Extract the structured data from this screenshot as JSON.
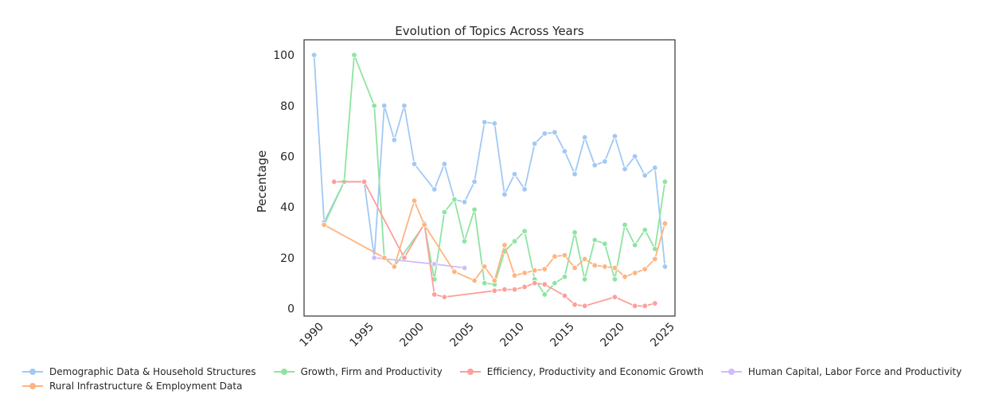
{
  "chart_data": {
    "type": "line",
    "title": "Evolution of Topics Across Years",
    "xlabel": "",
    "ylabel": "Pecentage",
    "xlim": [
      1988,
      2025
    ],
    "ylim": [
      -3,
      106
    ],
    "xticks": [
      1990,
      1995,
      2000,
      2005,
      2010,
      2015,
      2020,
      2025
    ],
    "yticks": [
      0,
      20,
      40,
      60,
      80,
      100
    ],
    "grid": false,
    "legend_position": "bottom",
    "series": [
      {
        "name": "Demographic Data & Household Structures",
        "color": "#a1c9f4",
        "points": [
          [
            1989,
            100
          ],
          [
            1990,
            34
          ],
          [
            1992,
            50
          ],
          [
            1994,
            50
          ],
          [
            1995,
            20
          ],
          [
            1996,
            80
          ],
          [
            1997,
            66.5
          ],
          [
            1998,
            80
          ],
          [
            1999,
            57
          ],
          [
            2001,
            47
          ],
          [
            2002,
            57
          ],
          [
            2003,
            43
          ],
          [
            2004,
            42
          ],
          [
            2005,
            50
          ],
          [
            2006,
            73.5
          ],
          [
            2007,
            73
          ],
          [
            2008,
            45
          ],
          [
            2009,
            53
          ],
          [
            2010,
            47
          ],
          [
            2011,
            65
          ],
          [
            2012,
            69
          ],
          [
            2013,
            69.5
          ],
          [
            2014,
            62
          ],
          [
            2015,
            53
          ],
          [
            2016,
            67.5
          ],
          [
            2017,
            56.5
          ],
          [
            2018,
            58
          ],
          [
            2019,
            68
          ],
          [
            2020,
            55
          ],
          [
            2021,
            60
          ],
          [
            2022,
            52.5
          ],
          [
            2023,
            55.5
          ],
          [
            2024,
            16.5
          ]
        ]
      },
      {
        "name": "Growth, Firm and Productivity",
        "color": "#8de5a1",
        "points": [
          [
            1990,
            33
          ],
          [
            1992,
            50
          ],
          [
            1993,
            100
          ],
          [
            1995,
            80
          ],
          [
            1996,
            20
          ],
          [
            1997,
            16.5
          ],
          [
            2000,
            33
          ],
          [
            2001,
            11.5
          ],
          [
            2002,
            38
          ],
          [
            2003,
            43
          ],
          [
            2004,
            26.5
          ],
          [
            2005,
            39
          ],
          [
            2006,
            10
          ],
          [
            2007,
            9.5
          ],
          [
            2008,
            22.5
          ],
          [
            2009,
            26.5
          ],
          [
            2010,
            30.5
          ],
          [
            2011,
            11.5
          ],
          [
            2012,
            5.5
          ],
          [
            2013,
            10
          ],
          [
            2014,
            12.5
          ],
          [
            2015,
            30
          ],
          [
            2016,
            11.5
          ],
          [
            2017,
            27
          ],
          [
            2018,
            25.5
          ],
          [
            2019,
            11.5
          ],
          [
            2020,
            33
          ],
          [
            2021,
            25
          ],
          [
            2022,
            31
          ],
          [
            2023,
            23.5
          ],
          [
            2024,
            50
          ]
        ]
      },
      {
        "name": "Efficiency, Productivity and Economic Growth",
        "color": "#ff9f9b",
        "points": [
          [
            1991,
            50
          ],
          [
            1994,
            50
          ],
          [
            1998,
            20
          ],
          [
            2000,
            33.5
          ],
          [
            2001,
            5.5
          ],
          [
            2002,
            4.5
          ],
          [
            2007,
            7
          ],
          [
            2008,
            7.5
          ],
          [
            2009,
            7.5
          ],
          [
            2010,
            8.5
          ],
          [
            2011,
            10
          ],
          [
            2012,
            9.5
          ],
          [
            2014,
            5
          ],
          [
            2015,
            1.5
          ],
          [
            2016,
            1
          ],
          [
            2019,
            4.5
          ],
          [
            2021,
            1
          ],
          [
            2022,
            1
          ],
          [
            2023,
            2
          ]
        ]
      },
      {
        "name": "Human Capital, Labor Force and Productivity",
        "color": "#d0bbff",
        "points": [
          [
            1995,
            20
          ],
          [
            2001,
            17.5
          ],
          [
            2004,
            16
          ]
        ]
      },
      {
        "name": "Rural Infrastructure & Employment Data",
        "color": "#ffb482",
        "points": [
          [
            1990,
            33
          ],
          [
            1996,
            20
          ],
          [
            1997,
            16.5
          ],
          [
            1999,
            42.5
          ],
          [
            2000,
            33
          ],
          [
            2003,
            14.5
          ],
          [
            2005,
            11
          ],
          [
            2006,
            16.5
          ],
          [
            2007,
            11
          ],
          [
            2008,
            25
          ],
          [
            2009,
            13
          ],
          [
            2010,
            14
          ],
          [
            2011,
            15
          ],
          [
            2012,
            15.5
          ],
          [
            2013,
            20.5
          ],
          [
            2014,
            21
          ],
          [
            2015,
            16
          ],
          [
            2016,
            19.5
          ],
          [
            2017,
            17
          ],
          [
            2018,
            16.5
          ],
          [
            2019,
            16
          ],
          [
            2020,
            12.5
          ],
          [
            2021,
            14
          ],
          [
            2022,
            15.5
          ],
          [
            2023,
            19.5
          ],
          [
            2024,
            33.5
          ]
        ]
      }
    ]
  }
}
